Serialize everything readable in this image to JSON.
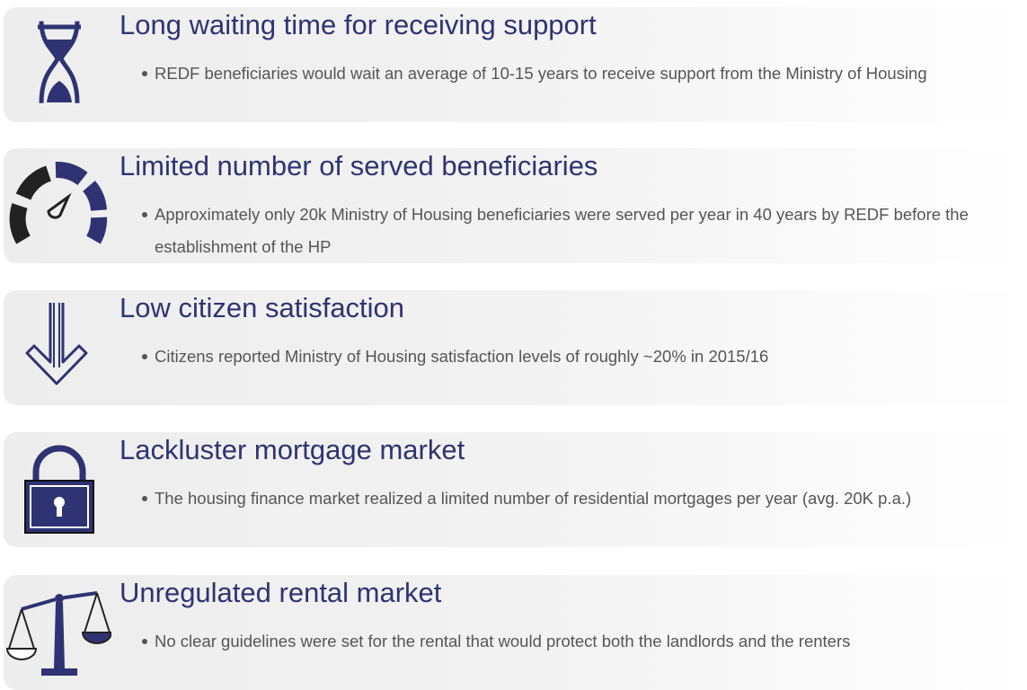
{
  "items": [
    {
      "title": "Long waiting time for receiving support",
      "bullet": "REDF beneficiaries would wait an average of 10-15 years to receive support from the Ministry of Housing"
    },
    {
      "title": "Limited number of served beneficiaries",
      "bullet": "Approximately only 20k Ministry of Housing beneficiaries were served per year in 40 years by REDF before the establishment of the HP"
    },
    {
      "title": "Low citizen satisfaction",
      "bullet": "Citizens reported Ministry of Housing satisfaction levels of roughly ~20%  in 2015/16"
    },
    {
      "title": "Lackluster mortgage market",
      "bullet": "The housing finance market realized a limited number of residential mortgages per year (avg. 20K p.a.)"
    },
    {
      "title": "Unregulated rental market",
      "bullet": "No clear guidelines were set for the rental that would protect both the landlords and the renters"
    }
  ]
}
